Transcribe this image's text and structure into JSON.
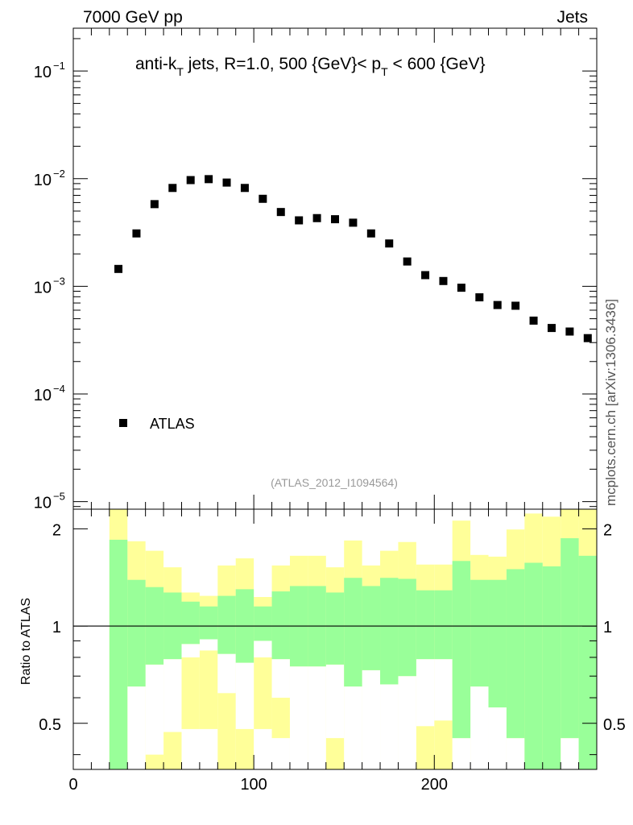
{
  "header": {
    "left": "7000 GeV pp",
    "right": "Jets"
  },
  "side_label": "mcplots.cern.ch [arXiv:1306.3436]",
  "colors": {
    "marker": "#000000",
    "band_yellow": "#ffff99",
    "band_green": "#99ff99",
    "ref_label": "#999999",
    "ref_line": "#000000"
  },
  "chart_data": [
    {
      "type": "scatter",
      "panel": "main",
      "title": "anti-k_T jets, R=1.0, 500 {GeV}< p_T < 600 {GeV}",
      "title_parts": {
        "a": "anti-k",
        "a_sub": "T",
        "b": " jets, R=1.0, 500 {GeV}< p",
        "b_sub": "T",
        "c": " < 600 {GeV}"
      },
      "reference_label": "(ATLAS_2012_I1094564)",
      "yscale": "log",
      "xlim": [
        0,
        290
      ],
      "ylim": [
        8.5e-06,
        0.25
      ],
      "ytick_labels": [
        {
          "value": 0.1,
          "base": "10",
          "exp": "−1"
        },
        {
          "value": 0.01,
          "base": "10",
          "exp": "−2"
        },
        {
          "value": 0.001,
          "base": "10",
          "exp": "−3"
        },
        {
          "value": 0.0001,
          "base": "10",
          "exp": "−4"
        },
        {
          "value": 1e-05,
          "base": "10",
          "exp": "−5"
        }
      ],
      "legend": {
        "position": "bottom-left",
        "entries": [
          "ATLAS"
        ]
      },
      "series": [
        {
          "name": "ATLAS",
          "x": [
            25,
            35,
            45,
            55,
            65,
            75,
            85,
            95,
            105,
            115,
            125,
            135,
            145,
            155,
            165,
            175,
            185,
            195,
            205,
            215,
            225,
            235,
            245,
            255,
            265,
            275,
            285
          ],
          "y": [
            0.00145,
            0.0031,
            0.0058,
            0.0082,
            0.0097,
            0.0099,
            0.0092,
            0.0082,
            0.0065,
            0.0049,
            0.0041,
            0.0043,
            0.0042,
            0.0039,
            0.0031,
            0.0025,
            0.0017,
            0.00127,
            0.00112,
            0.00097,
            0.00079,
            0.00067,
            0.00066,
            0.00048,
            0.00041,
            0.00038,
            0.00033
          ]
        }
      ]
    },
    {
      "type": "area",
      "panel": "ratio",
      "ylabel": "Ratio to ATLAS",
      "yscale": "log",
      "xlim": [
        0,
        290
      ],
      "ylim": [
        0.36,
        2.3
      ],
      "xticks": [
        0,
        100,
        200
      ],
      "xtick_labels": [
        "0",
        "100",
        "200"
      ],
      "yticks": [
        0.5,
        1,
        2
      ],
      "ytick_labels": [
        "0.5",
        "1",
        "2"
      ],
      "reference_line": 1,
      "bins": [
        [
          20,
          30
        ],
        [
          30,
          40
        ],
        [
          40,
          50
        ],
        [
          50,
          60
        ],
        [
          60,
          70
        ],
        [
          70,
          80
        ],
        [
          80,
          90
        ],
        [
          90,
          100
        ],
        [
          100,
          110
        ],
        [
          110,
          120
        ],
        [
          120,
          130
        ],
        [
          130,
          140
        ],
        [
          140,
          150
        ],
        [
          150,
          160
        ],
        [
          160,
          170
        ],
        [
          170,
          180
        ],
        [
          180,
          190
        ],
        [
          190,
          200
        ],
        [
          200,
          210
        ],
        [
          210,
          220
        ],
        [
          220,
          230
        ],
        [
          230,
          240
        ],
        [
          240,
          250
        ],
        [
          250,
          260
        ],
        [
          260,
          270
        ],
        [
          270,
          280
        ],
        [
          280,
          290
        ]
      ],
      "series": [
        {
          "name": "yellow band upper",
          "values": [
            2.35,
            1.83,
            1.71,
            1.52,
            1.27,
            1.24,
            1.54,
            1.62,
            1.23,
            1.54,
            1.65,
            1.65,
            1.52,
            1.84,
            1.54,
            1.71,
            1.82,
            1.55,
            1.55,
            2.12,
            1.66,
            1.64,
            1.99,
            2.23,
            2.18,
            2.37,
            2.3
          ]
        },
        {
          "name": "green band upper",
          "values": [
            1.85,
            1.39,
            1.32,
            1.27,
            1.19,
            1.15,
            1.24,
            1.3,
            1.15,
            1.28,
            1.33,
            1.33,
            1.27,
            1.41,
            1.33,
            1.41,
            1.4,
            1.29,
            1.29,
            1.59,
            1.39,
            1.39,
            1.5,
            1.57,
            1.53,
            1.87,
            1.65
          ]
        },
        {
          "name": "green band lower",
          "values": [
            0.36,
            0.65,
            0.76,
            0.79,
            0.88,
            0.91,
            0.82,
            0.77,
            0.9,
            0.79,
            0.75,
            0.75,
            0.76,
            0.65,
            0.73,
            0.66,
            0.7,
            0.79,
            0.79,
            0.45,
            0.65,
            0.56,
            0.45,
            0.36,
            0.36,
            0.45,
            0.36
          ]
        },
        {
          "name": "yellow band lower",
          "values": [
            0.36,
            0.36,
            0.36,
            0.36,
            0.48,
            0.48,
            0.36,
            0.36,
            0.48,
            0.45,
            0.36,
            0.36,
            0.36,
            0.36,
            0.36,
            0.36,
            0.36,
            0.36,
            0.36,
            0.36,
            0.36,
            0.36,
            0.36,
            0.36,
            0.36,
            0.36,
            0.36
          ]
        },
        {
          "name": "white band lower",
          "values": [
            0.36,
            0.36,
            0.4,
            0.47,
            0.8,
            0.84,
            0.62,
            0.48,
            0.8,
            0.6,
            0.36,
            0.36,
            0.45,
            0.36,
            0.36,
            0.36,
            0.36,
            0.49,
            0.51,
            0.36,
            0.36,
            0.36,
            0.36,
            0.36,
            0.36,
            0.36,
            0.36
          ]
        }
      ]
    }
  ]
}
